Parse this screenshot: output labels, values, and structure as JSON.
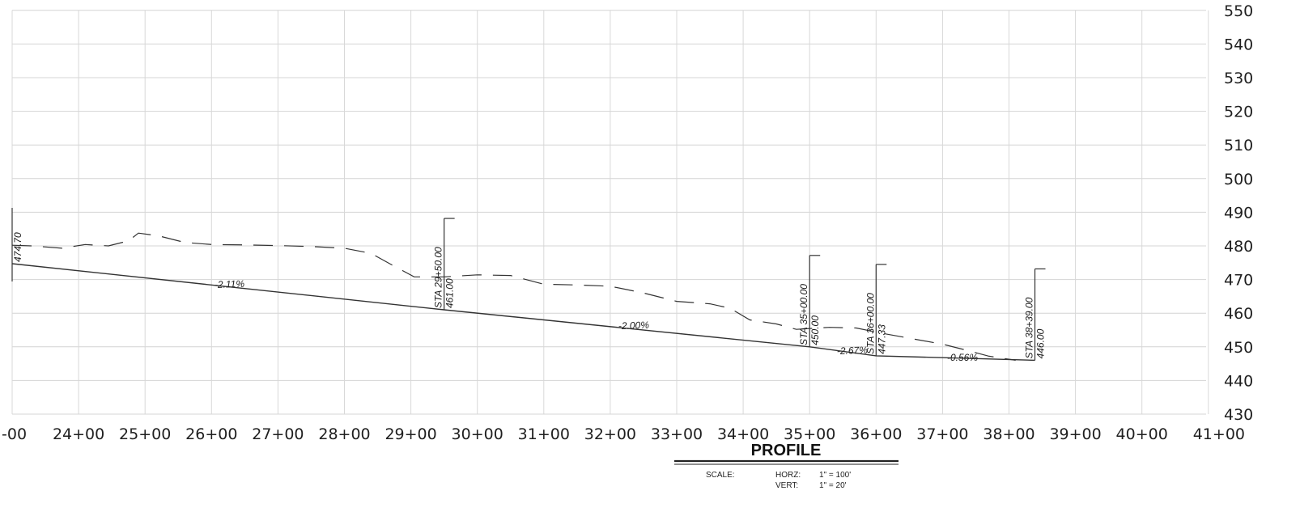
{
  "profile": {
    "title": "PROFILE",
    "scale": {
      "label": "SCALE:",
      "horz_label": "HORZ:",
      "horz_value": "1\" = 100'",
      "vert_label": "VERT:",
      "vert_value": "1\" = 20'"
    }
  },
  "chart_data": {
    "type": "line",
    "xlabels": [
      "-00",
      "24+00",
      "25+00",
      "26+00",
      "27+00",
      "28+00",
      "29+00",
      "30+00",
      "31+00",
      "32+00",
      "33+00",
      "34+00",
      "35+00",
      "36+00",
      "37+00",
      "38+00",
      "39+00",
      "40+00",
      "41+00"
    ],
    "ylabels": [
      "550",
      "540",
      "530",
      "520",
      "510",
      "500",
      "490",
      "480",
      "470",
      "460",
      "450",
      "440",
      "430"
    ],
    "xlim": [
      2300,
      4100
    ],
    "ylim": [
      430,
      550
    ],
    "series": [
      {
        "role": "existing-ground",
        "style": "dashed",
        "points": [
          [
            2300,
            480.2
          ],
          [
            2330,
            480.0
          ],
          [
            2375,
            479.3
          ],
          [
            2410,
            480.4
          ],
          [
            2445,
            480.0
          ],
          [
            2475,
            481.5
          ],
          [
            2490,
            483.8
          ],
          [
            2520,
            483.0
          ],
          [
            2560,
            481.0
          ],
          [
            2600,
            480.4
          ],
          [
            2650,
            480.3
          ],
          [
            2700,
            480.1
          ],
          [
            2750,
            479.8
          ],
          [
            2800,
            479.3
          ],
          [
            2840,
            477.8
          ],
          [
            2870,
            474.5
          ],
          [
            2905,
            470.8
          ],
          [
            2950,
            470.8
          ],
          [
            3000,
            471.4
          ],
          [
            3050,
            471.2
          ],
          [
            3100,
            468.6
          ],
          [
            3150,
            468.4
          ],
          [
            3200,
            468.0
          ],
          [
            3250,
            466.0
          ],
          [
            3300,
            463.5
          ],
          [
            3350,
            462.8
          ],
          [
            3380,
            461.5
          ],
          [
            3410,
            458.0
          ],
          [
            3450,
            456.8
          ],
          [
            3480,
            455.2
          ],
          [
            3530,
            455.8
          ],
          [
            3570,
            455.6
          ],
          [
            3610,
            454.0
          ],
          [
            3660,
            452.2
          ],
          [
            3700,
            450.8
          ],
          [
            3740,
            448.8
          ],
          [
            3770,
            447.2
          ],
          [
            3810,
            446.0
          ]
        ]
      },
      {
        "role": "proposed-grade",
        "style": "solid",
        "points": [
          [
            2300,
            474.7
          ],
          [
            2950,
            461.0
          ],
          [
            3500,
            450.0
          ],
          [
            3600,
            447.33
          ],
          [
            3839,
            446.0
          ]
        ]
      }
    ],
    "grades": [
      "-2.11%",
      "-2.00%",
      "-2.67%",
      "-0.56%"
    ],
    "stations": [
      {
        "station": 2300,
        "elev_label": "474.70"
      },
      {
        "station_label": "STA 29+50.00",
        "elev_label": "461.00",
        "station": 2950,
        "elev": 461.0
      },
      {
        "station_label": "STA 35+00.00",
        "elev_label": "450.00",
        "station": 3500,
        "elev": 450.0
      },
      {
        "station_label": "STA 36+00.00",
        "elev_label": "447.33",
        "station": 3600,
        "elev": 447.33
      },
      {
        "station_label": "STA 38+39.00",
        "elev_label": "446.00",
        "station": 3839,
        "elev": 446.0
      }
    ]
  }
}
